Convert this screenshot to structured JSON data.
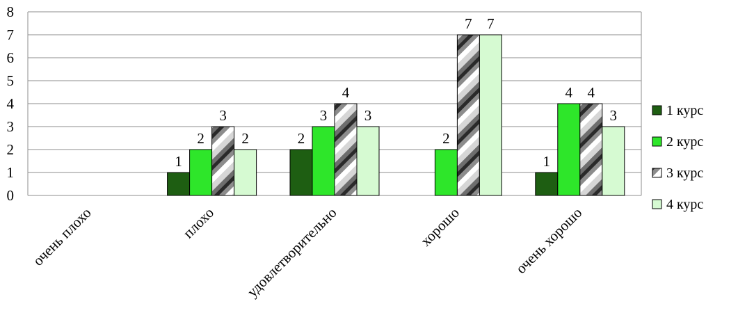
{
  "chart_data": {
    "type": "bar",
    "categories": [
      "очень плохо",
      "плохо",
      "удовлетворительно",
      "хорошо",
      "очень хорошо"
    ],
    "series": [
      {
        "name": "1 курс",
        "values": [
          0,
          1,
          2,
          0,
          1
        ],
        "color": "#1e5e12",
        "pattern": "solid"
      },
      {
        "name": "2 курс",
        "values": [
          0,
          2,
          3,
          2,
          4
        ],
        "color": "#2ee62a",
        "pattern": "solid"
      },
      {
        "name": "3 курс",
        "values": [
          0,
          3,
          4,
          7,
          4
        ],
        "color": "#b8b8b8",
        "pattern": "diagonal-stripes"
      },
      {
        "name": "4 курс",
        "values": [
          0,
          2,
          3,
          7,
          3
        ],
        "color": "#d6fad2",
        "pattern": "solid"
      }
    ],
    "ylim": [
      0,
      8
    ],
    "yticks": [
      "0",
      "1",
      "2",
      "3",
      "4",
      "5",
      "6",
      "7",
      "8"
    ],
    "grid": true,
    "legend_position": "right",
    "title": "",
    "xlabel": "",
    "ylabel": ""
  }
}
